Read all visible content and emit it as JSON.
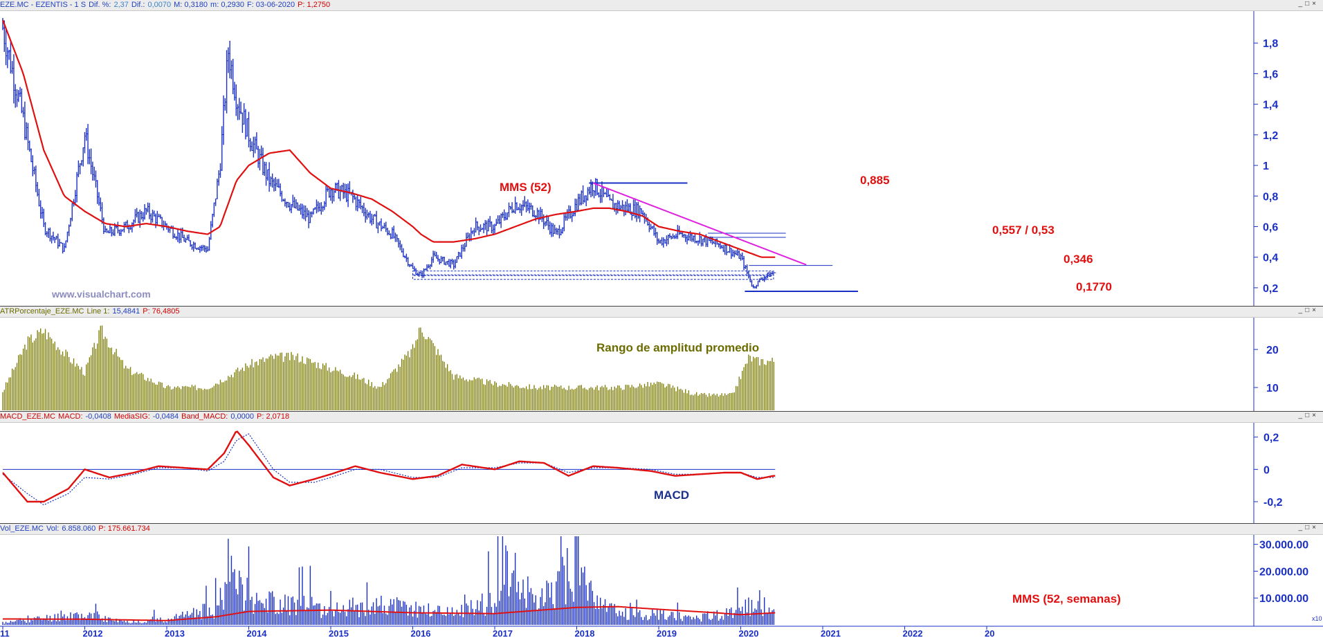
{
  "panels": {
    "price": {
      "header": [
        {
          "text": "EZE.MC - EZENTIS -  1 S",
          "cls": "c-blue"
        },
        {
          "text": "Dif. %:",
          "cls": "c-blue"
        },
        {
          "text": "2,37",
          "cls": "c-lblue"
        },
        {
          "text": "Dif.:",
          "cls": "c-blue"
        },
        {
          "text": "0,0070",
          "cls": "c-lblue"
        },
        {
          "text": "M: 0,3180",
          "cls": "c-blue"
        },
        {
          "text": "m: 0,2930",
          "cls": "c-blue"
        },
        {
          "text": "F: 03-06-2020",
          "cls": "c-blue"
        },
        {
          "text": "P: 1,2750",
          "cls": "c-red"
        }
      ],
      "watermark": "www.visualchart.com",
      "annotations": {
        "mms": "MMS (52)",
        "hi": "0,885",
        "res": "0,557 / 0,53",
        "mid": "0,346",
        "low": "0,1770"
      },
      "yticks": [
        "1,8",
        "1,6",
        "1,4",
        "1,2",
        "1",
        "0,8",
        "0,6",
        "0,4",
        "0,2"
      ]
    },
    "atr": {
      "header": [
        {
          "text": "ATRPorcentaje_EZE.MC",
          "cls": "c-olive"
        },
        {
          "text": "Line 1:",
          "cls": "c-olive"
        },
        {
          "text": "15,4841",
          "cls": "c-blue"
        },
        {
          "text": "P: 76,4805",
          "cls": "c-red"
        }
      ],
      "title": "Rango de amplitud promedio",
      "yticks": [
        "20",
        "10"
      ]
    },
    "macd": {
      "header": [
        {
          "text": "MACD_EZE.MC",
          "cls": "c-red"
        },
        {
          "text": "MACD:",
          "cls": "c-red"
        },
        {
          "text": "-0,0408",
          "cls": "c-blue"
        },
        {
          "text": "MediaSIG:",
          "cls": "c-red"
        },
        {
          "text": "-0,0484",
          "cls": "c-blue"
        },
        {
          "text": "Band_MACD:",
          "cls": "c-red"
        },
        {
          "text": "0,0000",
          "cls": "c-blue"
        },
        {
          "text": "P: 2,0718",
          "cls": "c-red"
        }
      ],
      "title": "MACD",
      "yticks": [
        "0,2",
        "0",
        "-0,2"
      ]
    },
    "vol": {
      "header": [
        {
          "text": "Vol_EZE.MC",
          "cls": "c-blue"
        },
        {
          "text": "Vol:",
          "cls": "c-blue"
        },
        {
          "text": "6.858.060",
          "cls": "c-blue"
        },
        {
          "text": "P: 175.661.734",
          "cls": "c-red"
        }
      ],
      "title": "MMS (52, semanas)",
      "yticks": [
        "30.000.00",
        "20.000.00",
        "10.000.00"
      ],
      "scale_note": "x10"
    }
  },
  "winbtns": "_□×",
  "xaxis": {
    "years": [
      "11",
      "2012",
      "2013",
      "2014",
      "2015",
      "2016",
      "2017",
      "2018",
      "2019",
      "2020",
      "2021",
      "2022",
      "20"
    ]
  },
  "chart_data": [
    {
      "type": "line",
      "title": "",
      "x": [
        2011.0,
        2011.25,
        2011.5,
        2011.75,
        2012.0,
        2012.25,
        2012.5,
        2012.75,
        2013.0,
        2013.25,
        2013.5,
        2013.65,
        2013.75,
        2013.85,
        2014.0,
        2014.25,
        2014.5,
        2014.75,
        2015.0,
        2015.25,
        2015.5,
        2015.75,
        2016.0,
        2016.1,
        2016.25,
        2016.5,
        2016.75,
        2017.0,
        2017.25,
        2017.5,
        2017.75,
        2018.0,
        2018.2,
        2018.4,
        2018.6,
        2018.8,
        2019.0,
        2019.25,
        2019.5,
        2019.75,
        2020.0,
        2020.15,
        2020.25,
        2020.4
      ],
      "series": [
        {
          "values": [
            1.9,
            1.3,
            0.6,
            0.45,
            1.2,
            0.55,
            0.6,
            0.7,
            0.6,
            0.5,
            0.45,
            1.0,
            1.75,
            1.45,
            1.2,
            0.9,
            0.75,
            0.65,
            0.85,
            0.8,
            0.65,
            0.55,
            0.32,
            0.28,
            0.4,
            0.35,
            0.6,
            0.6,
            0.75,
            0.7,
            0.55,
            0.75,
            0.88,
            0.75,
            0.72,
            0.7,
            0.5,
            0.55,
            0.52,
            0.48,
            0.4,
            0.2,
            0.26,
            0.3
          ]
        },
        {
          "values": [
            1.95,
            1.6,
            1.1,
            0.8,
            0.7,
            0.62,
            0.6,
            0.62,
            0.6,
            0.57,
            0.55,
            0.6,
            0.75,
            0.9,
            1.0,
            1.08,
            1.1,
            0.95,
            0.85,
            0.82,
            0.78,
            0.7,
            0.6,
            0.55,
            0.5,
            0.5,
            0.52,
            0.55,
            0.6,
            0.65,
            0.68,
            0.7,
            0.72,
            0.72,
            0.7,
            0.67,
            0.6,
            0.57,
            0.55,
            0.5,
            0.45,
            0.42,
            0.4,
            0.4
          ]
        }
      ],
      "ylim": [
        0.1,
        2.0
      ],
      "levels": [
        0.885,
        0.557,
        0.53,
        0.346,
        0.177
      ]
    },
    {
      "type": "bar",
      "title": "",
      "x": [
        2011.0,
        2011.3,
        2011.5,
        2011.8,
        2012.0,
        2012.2,
        2012.5,
        2012.8,
        2013.0,
        2013.5,
        2014.0,
        2014.3,
        2014.6,
        2015.0,
        2015.3,
        2015.6,
        2016.0,
        2016.1,
        2016.5,
        2017.0,
        2017.5,
        2018.0,
        2018.5,
        2019.0,
        2019.5,
        2019.9,
        2020.1,
        2020.2,
        2020.35
      ],
      "values": [
        9,
        22,
        25,
        18,
        14,
        25,
        15,
        12,
        10,
        10,
        16,
        18,
        18,
        15,
        13,
        10,
        20,
        26,
        13,
        11,
        10,
        10,
        10,
        11,
        8,
        8,
        18,
        17,
        17
      ],
      "ylim": [
        4,
        28
      ]
    },
    {
      "type": "line",
      "title": "",
      "x": [
        2011.0,
        2011.3,
        2011.5,
        2011.8,
        2012.0,
        2012.3,
        2012.6,
        2012.9,
        2013.2,
        2013.5,
        2013.7,
        2013.85,
        2014.0,
        2014.3,
        2014.5,
        2014.8,
        2015.0,
        2015.3,
        2015.6,
        2016.0,
        2016.3,
        2016.6,
        2017.0,
        2017.3,
        2017.6,
        2017.9,
        2018.2,
        2018.5,
        2018.9,
        2019.2,
        2019.5,
        2019.8,
        2020.0,
        2020.2,
        2020.4
      ],
      "series": [
        {
          "values": [
            -0.02,
            -0.2,
            -0.2,
            -0.12,
            0,
            -0.05,
            -0.02,
            0.02,
            0.01,
            0,
            0.1,
            0.24,
            0.15,
            -0.05,
            -0.1,
            -0.06,
            -0.03,
            0.02,
            -0.02,
            -0.06,
            -0.04,
            0.03,
            0,
            0.05,
            0.04,
            -0.04,
            0.02,
            0.01,
            -0.01,
            -0.04,
            -0.03,
            -0.02,
            -0.02,
            -0.06,
            -0.04
          ]
        },
        {
          "values": [
            -0.03,
            -0.15,
            -0.22,
            -0.15,
            -0.05,
            -0.06,
            -0.03,
            0.01,
            0.01,
            -0.01,
            0.05,
            0.18,
            0.22,
            0.0,
            -0.08,
            -0.08,
            -0.05,
            0,
            0,
            -0.05,
            -0.05,
            0.01,
            0.01,
            0.04,
            0.04,
            -0.02,
            0.01,
            0.01,
            0,
            -0.03,
            -0.03,
            -0.02,
            -0.02,
            -0.05,
            -0.05
          ]
        }
      ],
      "ylim": [
        -0.32,
        0.28
      ]
    },
    {
      "type": "bar",
      "title": "",
      "x": [
        2011.0,
        2011.9,
        2012.5,
        2013.0,
        2013.6,
        2013.75,
        2014.1,
        2014.6,
        2015.0,
        2015.5,
        2016.0,
        2016.5,
        2017.0,
        2017.1,
        2017.5,
        2018.0,
        2018.2,
        2018.5,
        2019.0,
        2019.5,
        2020.0,
        2020.2,
        2020.35
      ],
      "values": [
        1000000,
        5000000,
        1500000,
        2500000,
        8000000,
        24000000,
        12000000,
        10000000,
        7000000,
        10000000,
        8000000,
        6000000,
        12000000,
        31000000,
        10000000,
        30000000,
        12000000,
        6000000,
        5000000,
        4000000,
        6000000,
        14000000,
        6858060
      ],
      "ylim": [
        0,
        33000000
      ]
    }
  ]
}
